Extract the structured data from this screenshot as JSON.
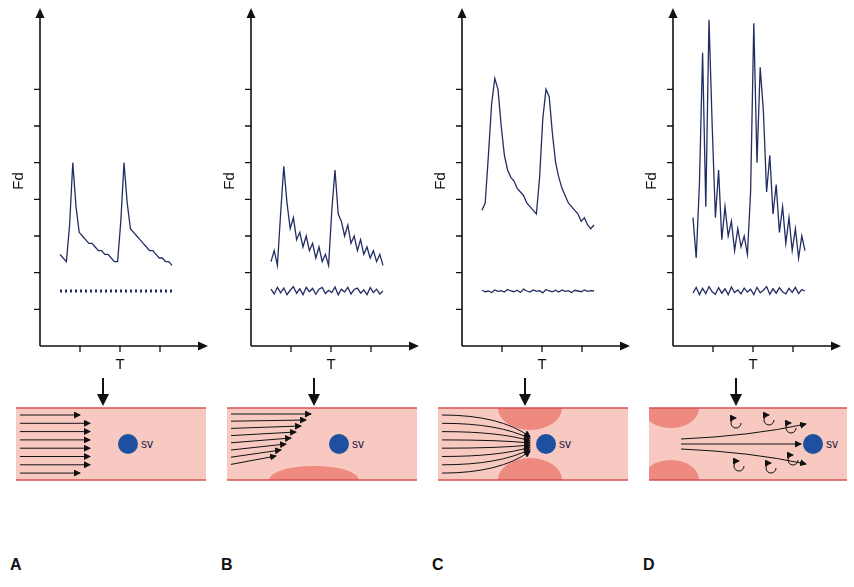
{
  "chart_data": [
    {
      "type": "line",
      "x_label": "T",
      "y_label": "Fd",
      "grid": false,
      "tick_labels": false,
      "xlim": [
        0,
        4
      ],
      "xticks": [
        1,
        2,
        3
      ],
      "ylim": [
        0,
        9
      ],
      "yticks": [
        1,
        2,
        3,
        4,
        5,
        6,
        7
      ],
      "x": [
        0.5,
        0.58,
        0.66,
        0.74,
        0.82,
        0.9,
        0.98,
        1.06,
        1.14,
        1.22,
        1.3,
        1.38,
        1.46,
        1.54,
        1.62,
        1.7,
        1.78,
        1.86,
        1.94,
        2.02,
        2.1,
        2.18,
        2.26,
        2.34,
        2.42,
        2.5,
        2.58,
        2.66,
        2.74,
        2.82,
        2.9,
        2.98,
        3.06,
        3.14,
        3.22,
        3.3
      ],
      "series": [
        {
          "color": "#222d63",
          "line_style": "solid",
          "values": [
            2.5,
            2.4,
            2.3,
            3.3,
            5.0,
            3.8,
            3.1,
            3.0,
            2.9,
            2.8,
            2.8,
            2.7,
            2.6,
            2.6,
            2.5,
            2.5,
            2.4,
            2.3,
            2.3,
            3.4,
            5.0,
            3.9,
            3.2,
            3.1,
            3.0,
            2.9,
            2.8,
            2.7,
            2.6,
            2.6,
            2.5,
            2.4,
            2.4,
            2.3,
            2.3,
            2.2
          ]
        },
        {
          "color": "#222d63",
          "line_style": "dotted",
          "values": [
            1.5,
            1.5,
            1.5,
            1.5,
            1.5,
            1.5,
            1.5,
            1.5,
            1.5,
            1.5,
            1.5,
            1.5,
            1.5,
            1.5,
            1.5,
            1.5,
            1.5,
            1.5,
            1.5,
            1.5,
            1.5,
            1.5,
            1.5,
            1.5,
            1.5,
            1.5,
            1.5,
            1.5,
            1.5,
            1.5,
            1.5,
            1.5,
            1.5,
            1.5,
            1.5,
            1.5
          ]
        }
      ]
    },
    {
      "type": "line",
      "x_label": "T",
      "y_label": "Fd",
      "grid": false,
      "tick_labels": false,
      "xlim": [
        0,
        4
      ],
      "xticks": [
        1,
        2,
        3
      ],
      "ylim": [
        0,
        9
      ],
      "yticks": [
        1,
        2,
        3,
        4,
        5,
        6,
        7
      ],
      "x": [
        0.5,
        0.58,
        0.66,
        0.74,
        0.82,
        0.9,
        0.98,
        1.06,
        1.14,
        1.22,
        1.3,
        1.38,
        1.46,
        1.54,
        1.62,
        1.7,
        1.78,
        1.86,
        1.94,
        2.02,
        2.1,
        2.18,
        2.26,
        2.34,
        2.42,
        2.5,
        2.58,
        2.66,
        2.74,
        2.82,
        2.9,
        2.98,
        3.06,
        3.14,
        3.22,
        3.3
      ],
      "series": [
        {
          "color": "#222d63",
          "line_style": "solid",
          "values": [
            2.3,
            2.6,
            2.2,
            3.6,
            4.9,
            3.9,
            3.2,
            3.5,
            2.9,
            3.1,
            2.7,
            3.0,
            2.6,
            2.8,
            2.4,
            2.7,
            2.3,
            2.5,
            2.2,
            3.7,
            4.8,
            3.6,
            3.4,
            3.0,
            3.3,
            2.8,
            3.0,
            2.6,
            2.9,
            2.5,
            2.7,
            2.4,
            2.6,
            2.3,
            2.5,
            2.2
          ]
        },
        {
          "color": "#222d63",
          "line_style": "solid",
          "values": [
            1.55,
            1.42,
            1.6,
            1.45,
            1.58,
            1.4,
            1.52,
            1.62,
            1.44,
            1.56,
            1.4,
            1.6,
            1.48,
            1.57,
            1.41,
            1.55,
            1.6,
            1.43,
            1.52,
            1.46,
            1.61,
            1.4,
            1.55,
            1.47,
            1.6,
            1.42,
            1.54,
            1.58,
            1.44,
            1.53,
            1.4,
            1.59,
            1.46,
            1.55,
            1.42,
            1.5
          ]
        }
      ]
    },
    {
      "type": "line",
      "x_label": "T",
      "y_label": "Fd",
      "grid": false,
      "tick_labels": false,
      "xlim": [
        0,
        4
      ],
      "xticks": [
        1,
        2,
        3
      ],
      "ylim": [
        0,
        9
      ],
      "yticks": [
        1,
        2,
        3,
        4,
        5,
        6,
        7
      ],
      "x": [
        0.5,
        0.58,
        0.66,
        0.74,
        0.82,
        0.9,
        0.98,
        1.06,
        1.14,
        1.22,
        1.3,
        1.38,
        1.46,
        1.54,
        1.62,
        1.7,
        1.78,
        1.86,
        1.94,
        2.02,
        2.1,
        2.18,
        2.26,
        2.34,
        2.42,
        2.5,
        2.58,
        2.66,
        2.74,
        2.82,
        2.9,
        2.98,
        3.06,
        3.14,
        3.22,
        3.3
      ],
      "series": [
        {
          "color": "#222d63",
          "line_style": "solid",
          "values": [
            3.7,
            3.9,
            5.2,
            6.6,
            7.3,
            7.0,
            6.0,
            5.2,
            4.8,
            4.6,
            4.5,
            4.3,
            4.2,
            4.1,
            3.9,
            3.8,
            3.7,
            3.6,
            4.6,
            6.2,
            7.0,
            6.8,
            5.8,
            5.0,
            4.6,
            4.3,
            4.1,
            3.9,
            3.8,
            3.7,
            3.6,
            3.4,
            3.5,
            3.3,
            3.2,
            3.3
          ]
        },
        {
          "color": "#222d63",
          "line_style": "solid",
          "values": [
            1.52,
            1.48,
            1.5,
            1.46,
            1.53,
            1.49,
            1.51,
            1.47,
            1.54,
            1.5,
            1.48,
            1.52,
            1.46,
            1.55,
            1.5,
            1.47,
            1.53,
            1.49,
            1.51,
            1.45,
            1.54,
            1.5,
            1.48,
            1.52,
            1.47,
            1.53,
            1.49,
            1.51,
            1.46,
            1.52,
            1.5,
            1.48,
            1.53,
            1.49,
            1.51,
            1.5
          ]
        }
      ]
    },
    {
      "type": "line",
      "x_label": "T",
      "y_label": "Fd",
      "grid": false,
      "tick_labels": false,
      "xlim": [
        0,
        4
      ],
      "xticks": [
        1,
        2,
        3
      ],
      "ylim": [
        0,
        9
      ],
      "yticks": [
        1,
        2,
        3,
        4,
        5,
        6,
        7
      ],
      "x": [
        0.5,
        0.58,
        0.66,
        0.74,
        0.82,
        0.9,
        0.98,
        1.06,
        1.14,
        1.22,
        1.3,
        1.38,
        1.46,
        1.54,
        1.62,
        1.7,
        1.78,
        1.86,
        1.94,
        2.02,
        2.1,
        2.18,
        2.26,
        2.34,
        2.42,
        2.5,
        2.58,
        2.66,
        2.74,
        2.82,
        2.9,
        2.98,
        3.06,
        3.14,
        3.22,
        3.3
      ],
      "series": [
        {
          "color": "#222d63",
          "line_style": "solid",
          "values": [
            3.5,
            2.4,
            4.4,
            8.0,
            3.8,
            8.9,
            6.0,
            3.5,
            4.8,
            2.9,
            3.8,
            3.0,
            3.4,
            2.6,
            3.2,
            2.7,
            3.0,
            2.5,
            4.2,
            8.8,
            5.0,
            7.6,
            6.4,
            4.2,
            5.2,
            3.6,
            4.4,
            3.1,
            3.8,
            2.8,
            3.5,
            2.6,
            3.2,
            2.4,
            3.0,
            2.6
          ]
        },
        {
          "color": "#222d63",
          "line_style": "solid",
          "values": [
            1.45,
            1.6,
            1.4,
            1.57,
            1.43,
            1.62,
            1.48,
            1.41,
            1.59,
            1.44,
            1.56,
            1.4,
            1.61,
            1.46,
            1.53,
            1.42,
            1.58,
            1.47,
            1.55,
            1.4,
            1.6,
            1.45,
            1.52,
            1.62,
            1.41,
            1.56,
            1.44,
            1.59,
            1.48,
            1.42,
            1.57,
            1.46,
            1.6,
            1.43,
            1.54,
            1.5
          ]
        }
      ]
    }
  ],
  "panels": [
    {
      "letter": "A",
      "label": "sv"
    },
    {
      "letter": "B",
      "label": "sv"
    },
    {
      "letter": "C",
      "label": "sv"
    },
    {
      "letter": "D",
      "label": "sv"
    }
  ]
}
